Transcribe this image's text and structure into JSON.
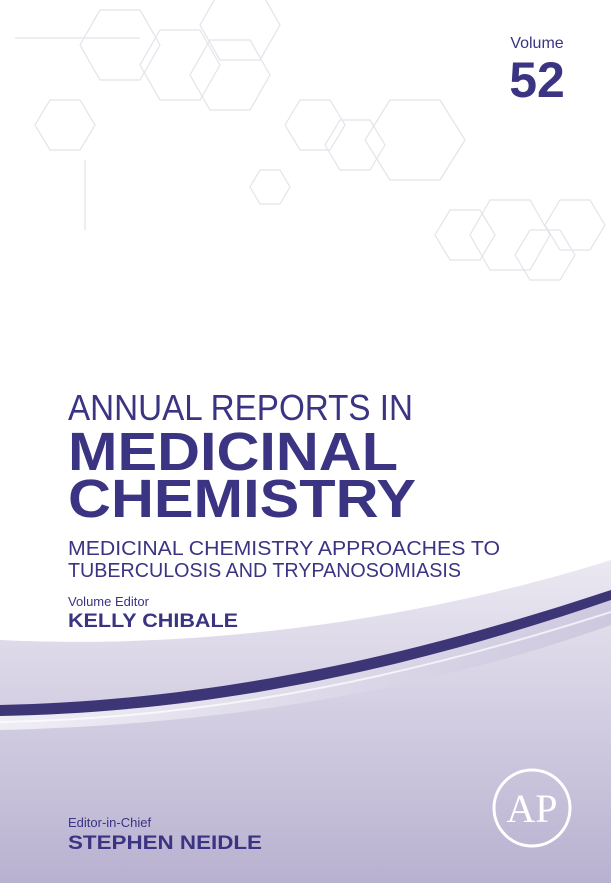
{
  "header": {
    "volume_label": "Volume",
    "volume_number": "52"
  },
  "series_title": "ANNUAL REPORTS IN",
  "main_title": [
    "MEDICINAL",
    "CHEMISTRY"
  ],
  "subtitle": [
    "MEDICINAL CHEMISTRY APPROACHES TO",
    "TUBERCULOSIS AND TRYPANOSOMIASIS"
  ],
  "volume_editor": {
    "label": "Volume Editor",
    "name": "KELLY CHIBALE"
  },
  "editor_in_chief": {
    "label": "Editor-in-Chief",
    "name": "STEPHEN NEIDLE"
  },
  "publisher_logo": "AP"
}
